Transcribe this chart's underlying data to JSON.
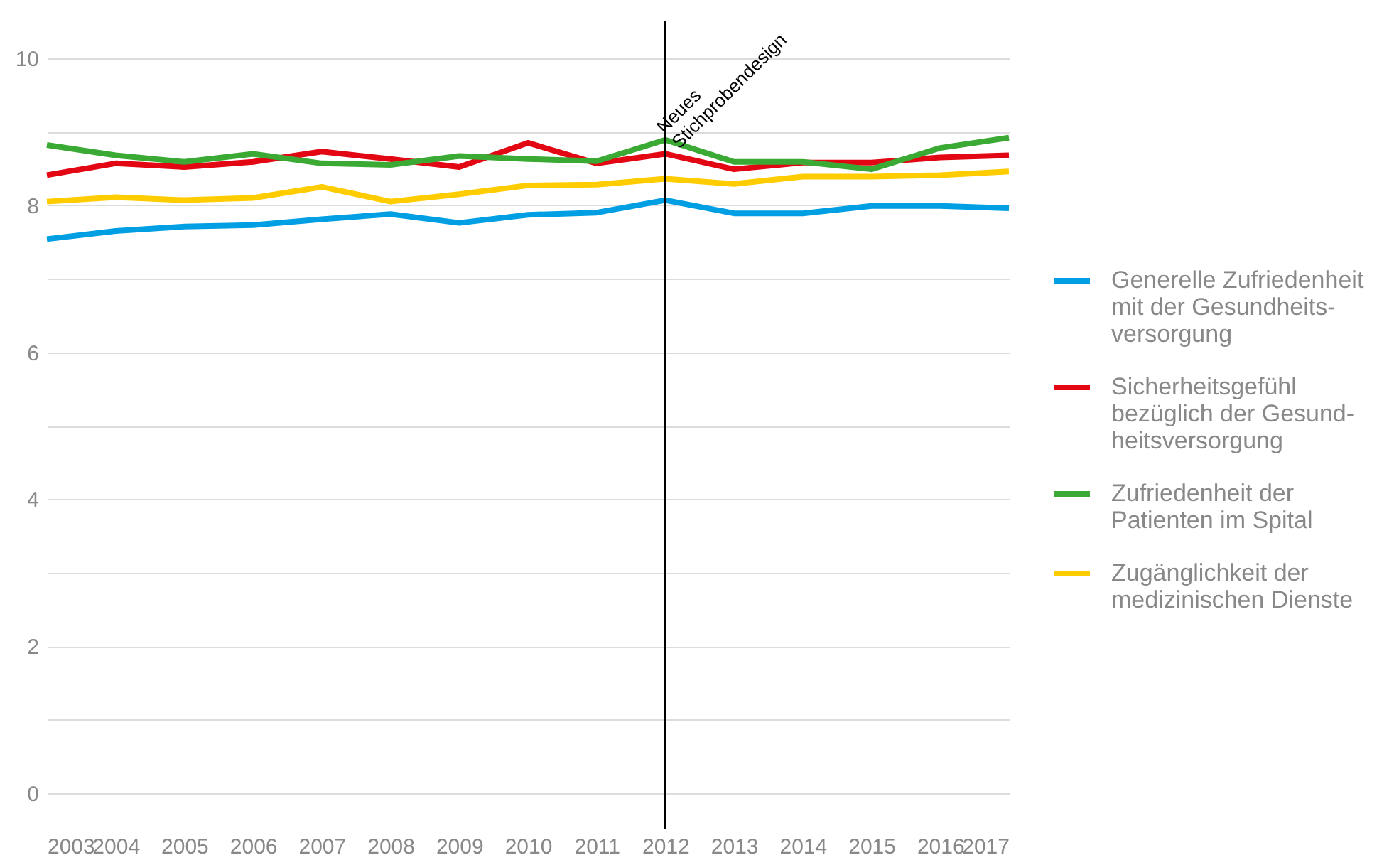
{
  "chart_data": {
    "type": "line",
    "x": [
      2003,
      2004,
      2005,
      2006,
      2007,
      2008,
      2009,
      2010,
      2011,
      2012,
      2013,
      2014,
      2015,
      2016,
      2017
    ],
    "xlim": [
      2003,
      2017
    ],
    "xticks": [
      2003,
      2004,
      2005,
      2006,
      2007,
      2008,
      2009,
      2010,
      2011,
      2012,
      2013,
      2014,
      2015,
      2016,
      2017
    ],
    "ylim": [
      0,
      10
    ],
    "yticks": [
      0,
      {
        "value": 1,
        "label": null
      },
      2,
      {
        "value": 3,
        "label": null
      },
      4,
      {
        "value": 5,
        "label": null
      },
      6,
      {
        "value": 7,
        "label": null
      },
      8,
      {
        "value": 9,
        "label": null
      },
      10
    ],
    "series": [
      {
        "name": "Generelle Zufriedenheit mit der Gesundheits-versorgung",
        "color": "#009fe3",
        "values": [
          7.54,
          7.65,
          7.71,
          7.73,
          7.81,
          7.88,
          7.76,
          7.87,
          7.9,
          8.07,
          7.89,
          7.89,
          7.99,
          7.99,
          7.96
        ]
      },
      {
        "name": "Sicherheitsgefühl bezüglich der Gesund-heitsversorgung",
        "color": "#e30613",
        "values": [
          8.41,
          8.57,
          8.52,
          8.59,
          8.73,
          8.63,
          8.52,
          8.85,
          8.57,
          8.7,
          8.49,
          8.58,
          8.58,
          8.65,
          8.68
        ]
      },
      {
        "name": "Zufriedenheit der Patienten im Spital",
        "color": "#3aaa35",
        "values": [
          8.82,
          8.68,
          8.59,
          8.7,
          8.57,
          8.55,
          8.67,
          8.63,
          8.6,
          8.89,
          8.59,
          8.59,
          8.49,
          8.78,
          8.92
        ]
      },
      {
        "name": "Zugänglichkeit der medizinischen Dienste",
        "color": "#ffcc00",
        "values": [
          8.05,
          8.11,
          8.07,
          8.1,
          8.25,
          8.05,
          8.15,
          8.27,
          8.28,
          8.36,
          8.29,
          8.39,
          8.39,
          8.41,
          8.46
        ]
      }
    ],
    "ref_lines": [
      {
        "axis": "x",
        "value": 2012,
        "label": "Neues Stichprobendesign",
        "color": "#000000"
      }
    ],
    "grid": "y",
    "legend": "right"
  }
}
